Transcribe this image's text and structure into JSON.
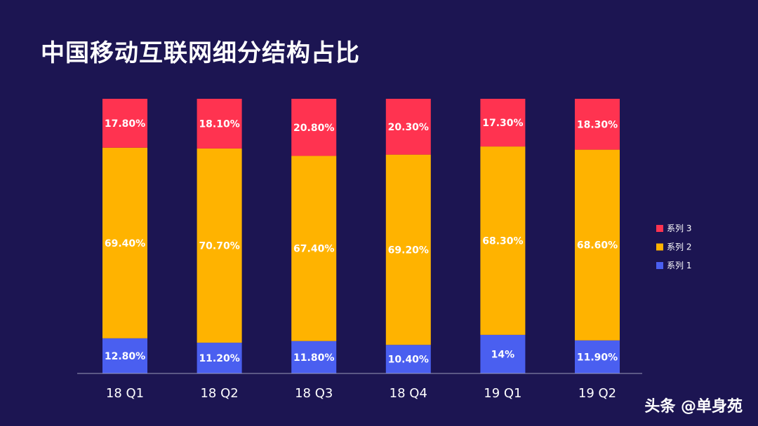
{
  "title": "中国移动互联网细分结构占比",
  "watermark": "头条 @单身苑",
  "colors": {
    "background": "#1c1552",
    "series1": "#4a5ff0",
    "series2": "#ffb300",
    "series3": "#ff3350",
    "axis": "#9a9ab8"
  },
  "chart_data": {
    "type": "bar",
    "stacked": true,
    "categories": [
      "18 Q1",
      "18 Q2",
      "18 Q3",
      "18 Q4",
      "19 Q1",
      "19 Q2"
    ],
    "series": [
      {
        "name": "系列 1",
        "values": [
          12.8,
          11.2,
          11.8,
          10.4,
          14,
          11.9
        ],
        "labels": [
          "12.80%",
          "11.20%",
          "11.80%",
          "10.40%",
          "14%",
          "11.90%"
        ],
        "color": "#4a5ff0"
      },
      {
        "name": "系列 2",
        "values": [
          69.4,
          70.7,
          67.4,
          69.2,
          68.3,
          68.6
        ],
        "labels": [
          "69.40%",
          "70.70%",
          "67.40%",
          "69.20%",
          "68.30%",
          "68.60%"
        ],
        "color": "#ffb300"
      },
      {
        "name": "系列 3",
        "values": [
          17.8,
          18.1,
          20.8,
          20.3,
          17.3,
          18.3
        ],
        "labels": [
          "17.80%",
          "18.10%",
          "20.80%",
          "20.30%",
          "17.30%",
          "18.30%"
        ],
        "color": "#ff3350"
      }
    ],
    "legend": [
      "系列 3",
      "系列 2",
      "系列 1"
    ],
    "legend_position": "right",
    "grid": false
  }
}
